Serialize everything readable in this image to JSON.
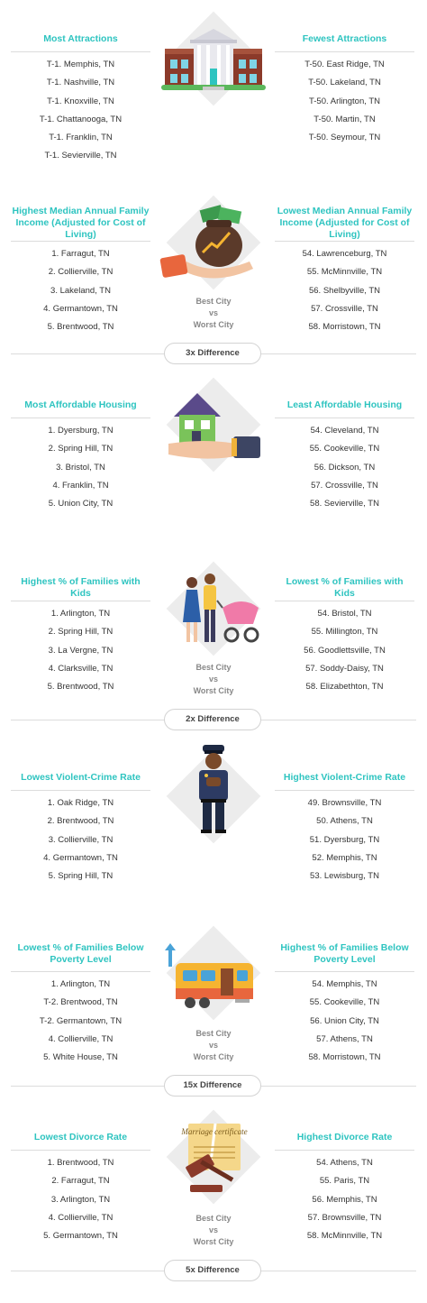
{
  "sections": [
    {
      "left_title": "Most Attractions",
      "right_title": "Fewest Attractions",
      "left": [
        "T-1. Memphis, TN",
        "T-1. Nashville, TN",
        "T-1. Knoxville, TN",
        "T-1. Chattanooga, TN",
        "T-1. Franklin, TN",
        "T-1. Sevierville, TN"
      ],
      "right": [
        "T-50. East Ridge, TN",
        "T-50. Lakeland, TN",
        "T-50. Arlington, TN",
        "T-50. Martin, TN",
        "T-50. Seymour, TN"
      ],
      "icon": "museum-building-icon"
    },
    {
      "left_title": "Highest Median Annual Family Income (Adjusted for Cost of Living)",
      "right_title": "Lowest Median Annual Family Income (Adjusted for Cost of Living)",
      "left": [
        "1. Farragut, TN",
        "2. Collierville, TN",
        "3. Lakeland, TN",
        "4. Germantown, TN",
        "5. Brentwood, TN"
      ],
      "right": [
        "54. Lawrenceburg, TN",
        "55. McMinnville, TN",
        "56. Shelbyville, TN",
        "57. Crossville, TN",
        "58. Morristown, TN"
      ],
      "icon": "money-bag-hand-icon",
      "best": "Best City",
      "vs": "vs",
      "worst": "Worst City",
      "difference": "3x Difference"
    },
    {
      "left_title": "Most Affordable Housing",
      "right_title": "Least Affordable Housing",
      "left": [
        "1. Dyersburg, TN",
        "2. Spring Hill, TN",
        "3. Bristol, TN",
        "4. Franklin, TN",
        "5. Union City, TN"
      ],
      "right": [
        "54. Cleveland, TN",
        "55. Cookeville, TN",
        "56. Dickson, TN",
        "57. Crossville, TN",
        "58. Sevierville, TN"
      ],
      "icon": "house-in-hand-icon"
    },
    {
      "left_title": "Highest % of Families with Kids",
      "right_title": "Lowest % of Families with Kids",
      "left": [
        "1. Arlington, TN",
        "2. Spring Hill, TN",
        "3. La Vergne, TN",
        "4. Clarksville, TN",
        "5. Brentwood, TN"
      ],
      "right": [
        "54. Bristol, TN",
        "55. Millington, TN",
        "56. Goodlettsville, TN",
        "57. Soddy-Daisy, TN",
        "58. Elizabethton, TN"
      ],
      "icon": "family-stroller-icon",
      "best": "Best City",
      "vs": "vs",
      "worst": "Worst City",
      "difference": "2x Difference"
    },
    {
      "left_title": "Lowest Violent-Crime Rate",
      "right_title": "Highest Violent-Crime Rate",
      "left": [
        "1. Oak Ridge, TN",
        "2. Brentwood, TN",
        "3. Collierville, TN",
        "4. Germantown, TN",
        "5. Spring Hill, TN"
      ],
      "right": [
        "49. Brownsville, TN",
        "50. Athens, TN",
        "51. Dyersburg, TN",
        "52. Memphis, TN",
        "53. Lewisburg, TN"
      ],
      "icon": "police-officer-icon"
    },
    {
      "left_title": "Lowest % of Families Below Poverty Level",
      "right_title": "Highest % of Families Below Poverty Level",
      "left": [
        "1. Arlington, TN",
        "T-2. Brentwood, TN",
        "T-2. Germantown, TN",
        "4. Collierville, TN",
        "5. White House, TN"
      ],
      "right": [
        "54. Memphis, TN",
        "55. Cookeville, TN",
        "56. Union City, TN",
        "57. Athens, TN",
        "58. Morristown, TN"
      ],
      "icon": "trailer-home-icon",
      "best": "Best City",
      "vs": "vs",
      "worst": "Worst City",
      "difference": "15x Difference"
    },
    {
      "left_title": "Lowest Divorce Rate",
      "right_title": "Highest Divorce Rate",
      "left": [
        "1. Brentwood, TN",
        "2. Farragut, TN",
        "3. Arlington, TN",
        "4. Collierville, TN",
        "5. Germantown, TN"
      ],
      "right": [
        "54. Athens, TN",
        "55. Paris, TN",
        "56. Memphis, TN",
        "57. Brownsville, TN",
        "58. McMinnville, TN"
      ],
      "icon": "gavel-certificate-icon",
      "certificate_text": "Marriage certificate",
      "best": "Best City",
      "vs": "vs",
      "worst": "Worst City",
      "difference": "5x Difference"
    }
  ]
}
